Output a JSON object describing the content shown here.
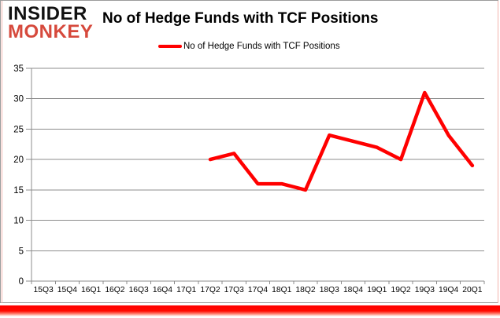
{
  "logo": {
    "line1": "INSIDER",
    "line2": "MONKEY",
    "line1_color": "#111111",
    "line2_color": "#d6493c"
  },
  "header": {
    "title": "No of Hedge Funds with TCF Positions"
  },
  "legend": {
    "label": "No of Hedge Funds with TCF Positions",
    "marker_color": "#ff0000"
  },
  "chart_data": {
    "type": "line",
    "title": "No of Hedge Funds with TCF Positions",
    "categories": [
      "15Q3",
      "15Q4",
      "16Q1",
      "16Q2",
      "16Q3",
      "16Q4",
      "17Q1",
      "17Q2",
      "17Q3",
      "17Q4",
      "18Q1",
      "18Q2",
      "18Q3",
      "18Q4",
      "19Q1",
      "19Q2",
      "19Q3",
      "19Q4",
      "20Q1"
    ],
    "series": [
      {
        "name": "No of Hedge Funds with TCF Positions",
        "color": "#ff0000",
        "values": [
          null,
          null,
          null,
          null,
          null,
          null,
          null,
          20,
          21,
          16,
          16,
          15,
          24,
          23,
          22,
          20,
          31,
          24,
          19
        ]
      }
    ],
    "xlabel": "",
    "ylabel": "",
    "ylim": [
      0,
      35
    ],
    "ytick_step": 5,
    "yticks": [
      0,
      5,
      10,
      15,
      20,
      25,
      30,
      35
    ],
    "grid": true,
    "gridline_color": "#8c8c8c",
    "legend_position": "top"
  },
  "frame": {
    "border_color": "#9b9b9b",
    "side_line_color": "#f2b6ae",
    "bottom_bar_color": "#ff0000"
  }
}
